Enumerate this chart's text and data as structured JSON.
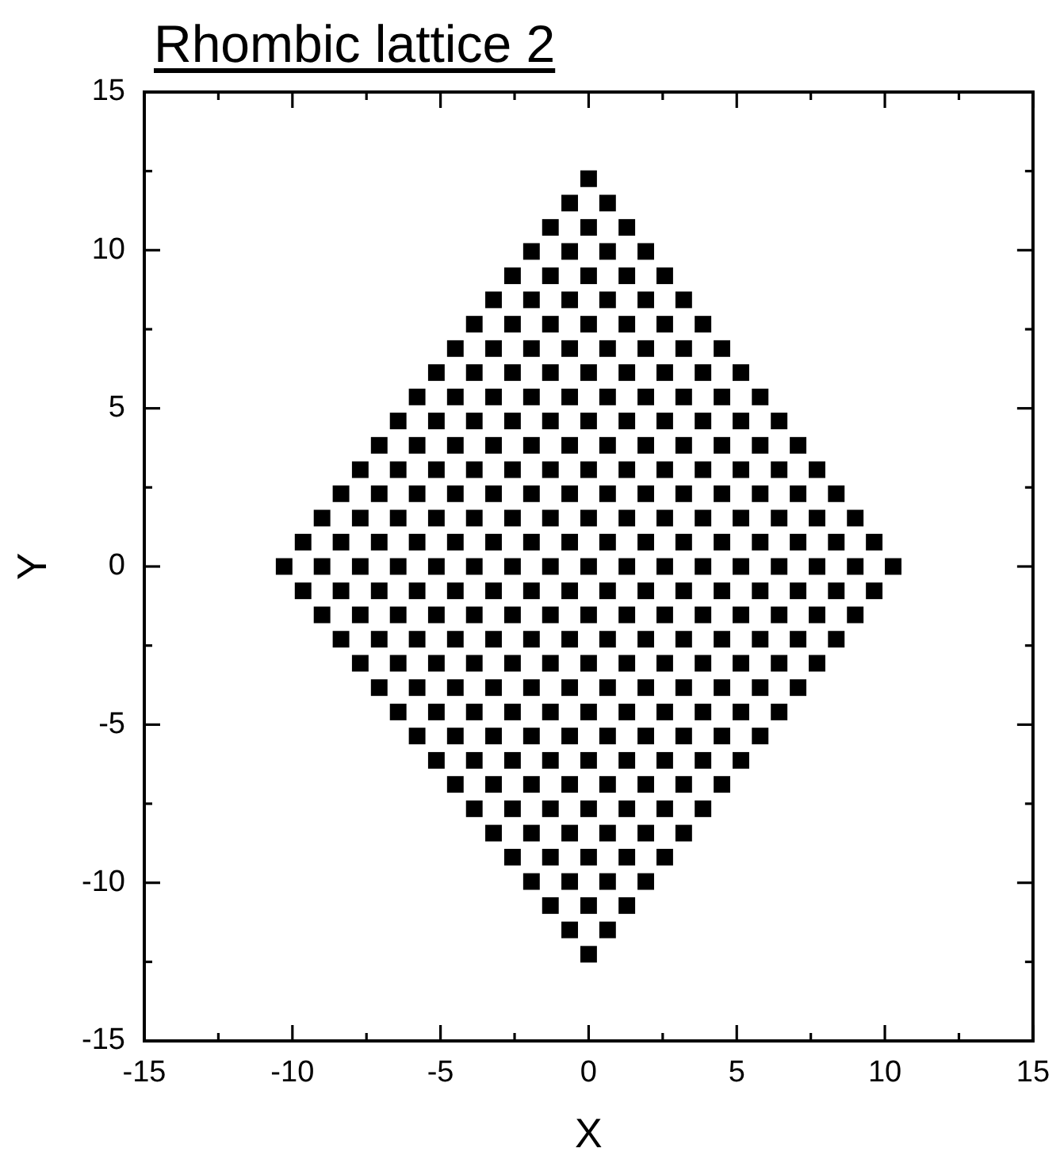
{
  "chart_data": {
    "type": "scatter",
    "title": "Rhombic lattice 2",
    "xlabel": "X",
    "ylabel": "Y",
    "xlim": [
      -15,
      15
    ],
    "ylim": [
      -15,
      15
    ],
    "xticks": [
      -15,
      {
        "value": -12.5,
        "label": null
      },
      -10,
      {
        "value": -7.5,
        "label": null
      },
      -5,
      {
        "value": -2.5,
        "label": null
      },
      0,
      {
        "value": 2.5,
        "label": null
      },
      5,
      {
        "value": 7.5,
        "label": null
      },
      10,
      {
        "value": 12.5,
        "label": null
      },
      15
    ],
    "yticks": [
      -15,
      {
        "value": -12.5,
        "label": null
      },
      -10,
      {
        "value": -7.5,
        "label": null
      },
      -5,
      {
        "value": -2.5,
        "label": null
      },
      0,
      {
        "value": 2.5,
        "label": null
      },
      5,
      {
        "value": 7.5,
        "label": null
      },
      10,
      {
        "value": 12.5,
        "label": null
      },
      15
    ],
    "marker": "square",
    "color": "#000000",
    "x": [
      0,
      -0.64,
      0.64,
      -1.29,
      0,
      1.29,
      -1.93,
      -0.64,
      0.64,
      1.93,
      -2.57,
      -1.29,
      0,
      1.29,
      2.57,
      -3.21,
      -1.93,
      -0.64,
      0.64,
      1.93,
      3.21,
      -3.86,
      -2.57,
      -1.29,
      0,
      1.29,
      2.57,
      3.86,
      -4.5,
      -3.21,
      -1.93,
      -0.64,
      0.64,
      1.93,
      3.21,
      4.5,
      -5.14,
      -3.86,
      -2.57,
      -1.29,
      0,
      1.29,
      2.57,
      3.86,
      5.14,
      -5.79,
      -4.5,
      -3.21,
      -1.93,
      -0.64,
      0.64,
      1.93,
      3.21,
      4.5,
      5.79,
      -6.43,
      -5.14,
      -3.86,
      -2.57,
      -1.29,
      0,
      1.29,
      2.57,
      3.86,
      5.14,
      6.43,
      -7.07,
      -5.79,
      -4.5,
      -3.21,
      -1.93,
      -0.64,
      0.64,
      1.93,
      3.21,
      4.5,
      5.79,
      7.07,
      -7.71,
      -6.43,
      -5.14,
      -3.86,
      -2.57,
      -1.29,
      0,
      1.29,
      2.57,
      3.86,
      5.14,
      6.43,
      7.71,
      -8.36,
      -7.07,
      -5.79,
      -4.5,
      -3.21,
      -1.93,
      -0.64,
      0.64,
      1.93,
      3.21,
      4.5,
      5.79,
      7.07,
      8.36,
      -9,
      -7.71,
      -6.43,
      -5.14,
      -3.86,
      -2.57,
      -1.29,
      0,
      1.29,
      2.57,
      3.86,
      5.14,
      6.43,
      7.71,
      9,
      -9.64,
      -8.36,
      -7.07,
      -5.79,
      -4.5,
      -3.21,
      -1.93,
      -0.64,
      0.64,
      1.93,
      3.21,
      4.5,
      5.79,
      7.07,
      8.36,
      9.64,
      -10.28,
      -9,
      -7.71,
      -6.43,
      -5.14,
      -3.86,
      -2.57,
      -1.29,
      0,
      1.29,
      2.57,
      3.86,
      5.14,
      6.43,
      7.71,
      9,
      10.28,
      -9.64,
      -8.36,
      -7.07,
      -5.79,
      -4.5,
      -3.21,
      -1.93,
      -0.64,
      0.64,
      1.93,
      3.21,
      4.5,
      5.79,
      7.07,
      8.36,
      9.64,
      -9,
      -7.71,
      -6.43,
      -5.14,
      -3.86,
      -2.57,
      -1.29,
      0,
      1.29,
      2.57,
      3.86,
      5.14,
      6.43,
      7.71,
      9,
      -8.36,
      -7.07,
      -5.79,
      -4.5,
      -3.21,
      -1.93,
      -0.64,
      0.64,
      1.93,
      3.21,
      4.5,
      5.79,
      7.07,
      8.36,
      -7.71,
      -6.43,
      -5.14,
      -3.86,
      -2.57,
      -1.29,
      0,
      1.29,
      2.57,
      3.86,
      5.14,
      6.43,
      7.71,
      -7.07,
      -5.79,
      -4.5,
      -3.21,
      -1.93,
      -0.64,
      0.64,
      1.93,
      3.21,
      4.5,
      5.79,
      7.07,
      -6.43,
      -5.14,
      -3.86,
      -2.57,
      -1.29,
      0,
      1.29,
      2.57,
      3.86,
      5.14,
      6.43,
      -5.79,
      -4.5,
      -3.21,
      -1.93,
      -0.64,
      0.64,
      1.93,
      3.21,
      4.5,
      5.79,
      -5.14,
      -3.86,
      -2.57,
      -1.29,
      0,
      1.29,
      2.57,
      3.86,
      5.14,
      -4.5,
      -3.21,
      -1.93,
      -0.64,
      0.64,
      1.93,
      3.21,
      4.5,
      -3.86,
      -2.57,
      -1.29,
      0,
      1.29,
      2.57,
      3.86,
      -3.21,
      -1.93,
      -0.64,
      0.64,
      1.93,
      3.21,
      -2.57,
      -1.29,
      0,
      1.29,
      2.57,
      -1.93,
      -0.64,
      0.64,
      1.93,
      -1.29,
      0,
      1.29,
      -0.64,
      0.64,
      0
    ],
    "values": [
      12.26,
      11.49,
      11.49,
      10.72,
      10.72,
      10.72,
      9.96,
      9.96,
      9.96,
      9.96,
      9.19,
      9.19,
      9.19,
      9.19,
      9.19,
      8.43,
      8.43,
      8.43,
      8.43,
      8.43,
      8.43,
      7.66,
      7.66,
      7.66,
      7.66,
      7.66,
      7.66,
      7.66,
      6.89,
      6.89,
      6.89,
      6.89,
      6.89,
      6.89,
      6.89,
      6.89,
      6.13,
      6.13,
      6.13,
      6.13,
      6.13,
      6.13,
      6.13,
      6.13,
      6.13,
      5.36,
      5.36,
      5.36,
      5.36,
      5.36,
      5.36,
      5.36,
      5.36,
      5.36,
      5.36,
      4.6,
      4.6,
      4.6,
      4.6,
      4.6,
      4.6,
      4.6,
      4.6,
      4.6,
      4.6,
      4.6,
      3.83,
      3.83,
      3.83,
      3.83,
      3.83,
      3.83,
      3.83,
      3.83,
      3.83,
      3.83,
      3.83,
      3.83,
      3.06,
      3.06,
      3.06,
      3.06,
      3.06,
      3.06,
      3.06,
      3.06,
      3.06,
      3.06,
      3.06,
      3.06,
      3.06,
      2.3,
      2.3,
      2.3,
      2.3,
      2.3,
      2.3,
      2.3,
      2.3,
      2.3,
      2.3,
      2.3,
      2.3,
      2.3,
      2.3,
      1.53,
      1.53,
      1.53,
      1.53,
      1.53,
      1.53,
      1.53,
      1.53,
      1.53,
      1.53,
      1.53,
      1.53,
      1.53,
      1.53,
      1.53,
      0.77,
      0.77,
      0.77,
      0.77,
      0.77,
      0.77,
      0.77,
      0.77,
      0.77,
      0.77,
      0.77,
      0.77,
      0.77,
      0.77,
      0.77,
      0.77,
      0,
      0,
      0,
      0,
      0,
      0,
      0,
      0,
      0,
      0,
      0,
      0,
      0,
      0,
      0,
      0,
      0,
      -0.77,
      -0.77,
      -0.77,
      -0.77,
      -0.77,
      -0.77,
      -0.77,
      -0.77,
      -0.77,
      -0.77,
      -0.77,
      -0.77,
      -0.77,
      -0.77,
      -0.77,
      -0.77,
      -1.53,
      -1.53,
      -1.53,
      -1.53,
      -1.53,
      -1.53,
      -1.53,
      -1.53,
      -1.53,
      -1.53,
      -1.53,
      -1.53,
      -1.53,
      -1.53,
      -1.53,
      -2.3,
      -2.3,
      -2.3,
      -2.3,
      -2.3,
      -2.3,
      -2.3,
      -2.3,
      -2.3,
      -2.3,
      -2.3,
      -2.3,
      -2.3,
      -2.3,
      -3.06,
      -3.06,
      -3.06,
      -3.06,
      -3.06,
      -3.06,
      -3.06,
      -3.06,
      -3.06,
      -3.06,
      -3.06,
      -3.06,
      -3.06,
      -3.83,
      -3.83,
      -3.83,
      -3.83,
      -3.83,
      -3.83,
      -3.83,
      -3.83,
      -3.83,
      -3.83,
      -3.83,
      -3.83,
      -4.6,
      -4.6,
      -4.6,
      -4.6,
      -4.6,
      -4.6,
      -4.6,
      -4.6,
      -4.6,
      -4.6,
      -4.6,
      -5.36,
      -5.36,
      -5.36,
      -5.36,
      -5.36,
      -5.36,
      -5.36,
      -5.36,
      -5.36,
      -5.36,
      -6.13,
      -6.13,
      -6.13,
      -6.13,
      -6.13,
      -6.13,
      -6.13,
      -6.13,
      -6.13,
      -6.89,
      -6.89,
      -6.89,
      -6.89,
      -6.89,
      -6.89,
      -6.89,
      -6.89,
      -7.66,
      -7.66,
      -7.66,
      -7.66,
      -7.66,
      -7.66,
      -7.66,
      -8.43,
      -8.43,
      -8.43,
      -8.43,
      -8.43,
      -8.43,
      -9.19,
      -9.19,
      -9.19,
      -9.19,
      -9.19,
      -9.96,
      -9.96,
      -9.96,
      -9.96,
      -10.72,
      -10.72,
      -10.72,
      -11.49,
      -11.49,
      -12.26
    ]
  }
}
